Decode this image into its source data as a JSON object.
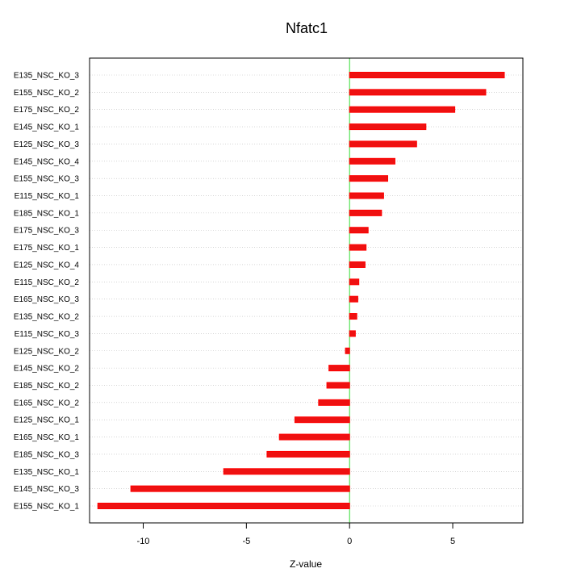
{
  "chart_data": {
    "type": "bar",
    "orientation": "horizontal",
    "title": "Nfatc1",
    "xlabel": "Z-value",
    "ylabel": "",
    "xlim": [
      -12.6,
      8.4
    ],
    "xticks": [
      -10,
      -5,
      0,
      5
    ],
    "xtick_labels": [
      "-10",
      "-5",
      "0",
      "5"
    ],
    "grid": "horizontal dotted",
    "reference_line": 0,
    "colors": {
      "bar": "#ff0000",
      "bar_fill": "#ee1111",
      "reference_line": "#33dd33",
      "grid": "#bbbbbb",
      "frame": "#000000"
    },
    "categories": [
      "E135_NSC_KO_3",
      "E155_NSC_KO_2",
      "E175_NSC_KO_2",
      "E145_NSC_KO_1",
      "E125_NSC_KO_3",
      "E145_NSC_KO_4",
      "E155_NSC_KO_3",
      "E115_NSC_KO_1",
      "E185_NSC_KO_1",
      "E175_NSC_KO_3",
      "E175_NSC_KO_1",
      "E125_NSC_KO_4",
      "E115_NSC_KO_2",
      "E165_NSC_KO_3",
      "E135_NSC_KO_2",
      "E115_NSC_KO_3",
      "E125_NSC_KO_2",
      "E145_NSC_KO_2",
      "E185_NSC_KO_2",
      "E165_NSC_KO_2",
      "E125_NSC_KO_1",
      "E165_NSC_KO_1",
      "E185_NSC_KO_3",
      "E135_NSC_KO_1",
      "E145_NSC_KO_3",
      "E155_NSC_KO_1"
    ],
    "values": [
      7.5,
      6.6,
      5.1,
      3.7,
      3.25,
      2.2,
      1.85,
      1.65,
      1.55,
      0.9,
      0.8,
      0.75,
      0.45,
      0.4,
      0.35,
      0.28,
      -0.2,
      -1.0,
      -1.1,
      -1.5,
      -2.65,
      -3.4,
      -4.0,
      -6.1,
      -10.6,
      -12.2
    ]
  }
}
